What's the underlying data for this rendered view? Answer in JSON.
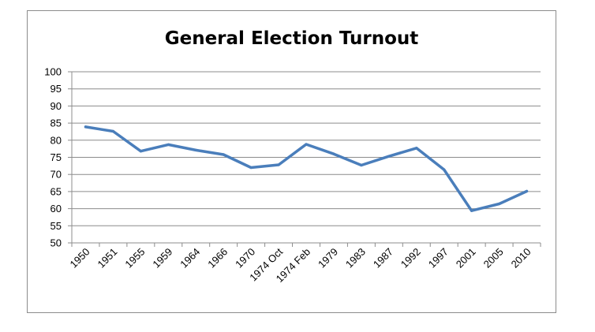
{
  "chart_data": {
    "type": "line",
    "title": "General Election Turnout",
    "xlabel": "",
    "ylabel": "",
    "ylim": [
      50,
      100
    ],
    "ystep": 5,
    "grid": true,
    "legend": "none",
    "line_color": "#4a7ebb",
    "x": [
      "1950",
      "1951",
      "1955",
      "1959",
      "1964",
      "1966",
      "1970",
      "1974 Oct",
      "1974 Feb",
      "1979",
      "1983",
      "1987",
      "1992",
      "1997",
      "2001",
      "2005",
      "2010"
    ],
    "series": [
      {
        "values": [
          83.9,
          82.6,
          76.8,
          78.7,
          77.1,
          75.8,
          72.0,
          72.8,
          78.8,
          76.0,
          72.7,
          75.3,
          77.7,
          71.4,
          59.4,
          61.4,
          65.1
        ]
      }
    ]
  }
}
